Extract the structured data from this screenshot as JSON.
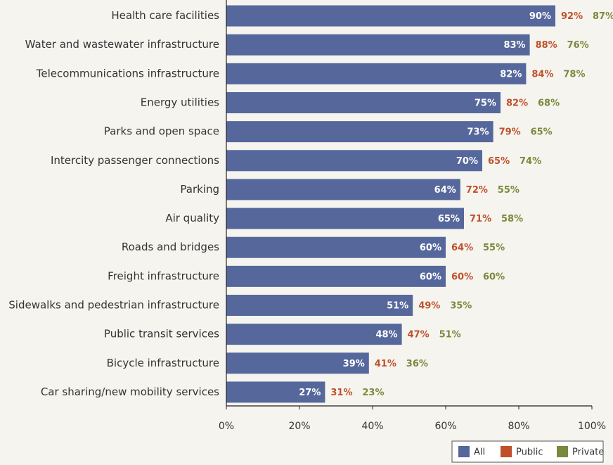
{
  "chart_data": {
    "type": "bar",
    "orientation": "horizontal",
    "categories": [
      "Health care facilities",
      "Water and wastewater infrastructure",
      "Telecommunications infrastructure",
      "Energy utilities",
      "Parks and open space",
      "Intercity passenger connections",
      "Parking",
      "Air quality",
      "Roads and bridges",
      "Freight infrastructure",
      "Sidewalks and pedestrian infrastructure",
      "Public transit services",
      "Bicycle infrastructure",
      "Car sharing/new mobility services"
    ],
    "series": [
      {
        "name": "All",
        "color": "#56679c",
        "values": [
          90,
          83,
          82,
          75,
          73,
          70,
          64,
          65,
          60,
          60,
          51,
          48,
          39,
          27
        ],
        "value_labels": [
          "90%",
          "83%",
          "82%",
          "75%",
          "73%",
          "70%",
          "64%",
          "65%",
          "60%",
          "60%",
          "51%",
          "48%",
          "39%",
          "27%"
        ]
      },
      {
        "name": "Public",
        "color": "#c0502a",
        "values": [
          92,
          88,
          84,
          82,
          79,
          65,
          72,
          71,
          64,
          60,
          49,
          47,
          41,
          31
        ],
        "value_labels": [
          "92%",
          "88%",
          "84%",
          "82%",
          "79%",
          "65%",
          "72%",
          "71%",
          "64%",
          "60%",
          "49%",
          "47%",
          "41%",
          "31%"
        ]
      },
      {
        "name": "Private",
        "color": "#7a8a3c",
        "values": [
          87,
          76,
          78,
          68,
          65,
          74,
          55,
          58,
          55,
          60,
          35,
          51,
          36,
          23
        ],
        "value_labels": [
          "87%",
          "76%",
          "78%",
          "68%",
          "65%",
          "74%",
          "55%",
          "58%",
          "55%",
          "60%",
          "35%",
          "51%",
          "36%",
          "23%"
        ]
      }
    ],
    "xlim": [
      0,
      100
    ],
    "xticks": [
      {
        "value": 0,
        "label": "0%"
      },
      {
        "value": 20,
        "label": "20%"
      },
      {
        "value": 40,
        "label": "40%"
      },
      {
        "value": 60,
        "label": "60%"
      },
      {
        "value": 80,
        "label": "80%"
      },
      {
        "value": 100,
        "label": "100%"
      }
    ],
    "legend": "bottom-right"
  }
}
